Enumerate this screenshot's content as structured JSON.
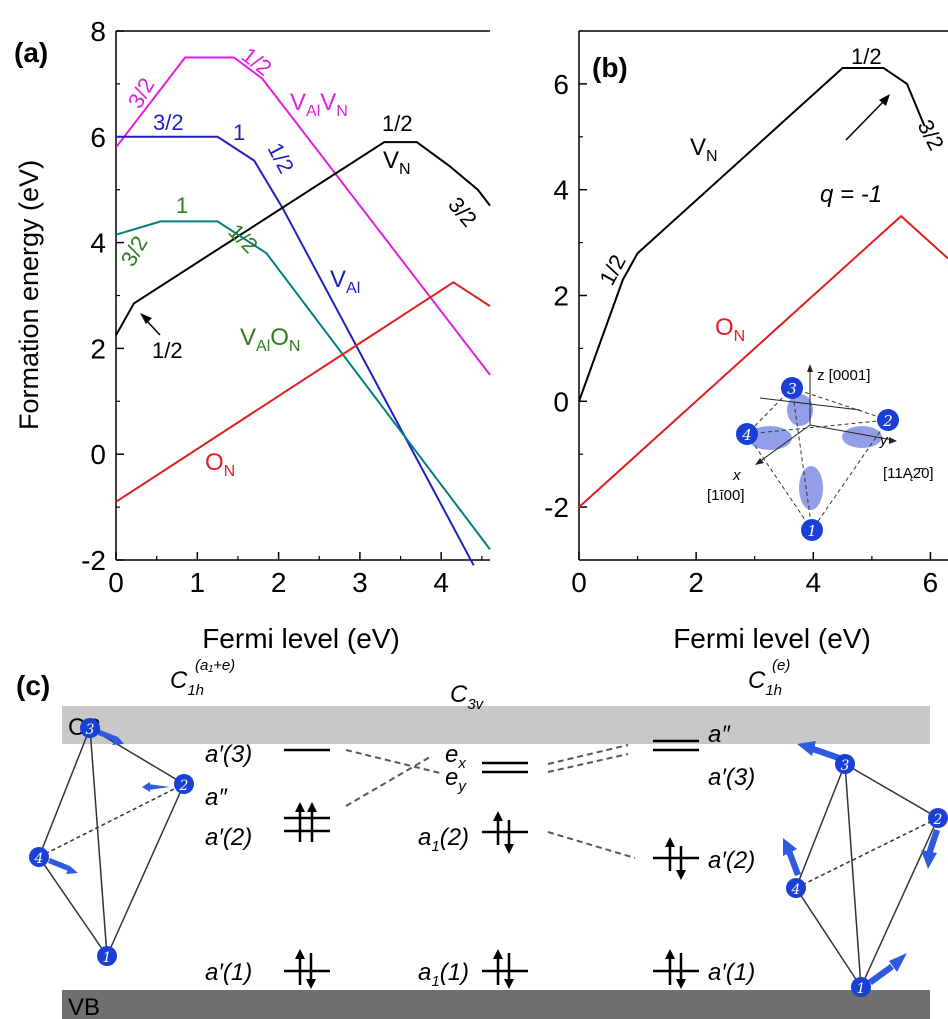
{
  "panels": [
    {
      "id": "a",
      "label": "(a)",
      "ylabel": "Formation energy (eV)",
      "xlabel": "Fermi level (eV)",
      "xlim": [
        0,
        4.6
      ],
      "ylim": [
        -2,
        8
      ],
      "xticks": [
        0,
        1,
        2,
        3,
        4
      ],
      "yticks": [
        -2,
        0,
        2,
        4,
        6,
        8
      ],
      "series": [
        {
          "name": "V_AlV_N",
          "color": "#e020e0",
          "points": [
            [
              0,
              5.8
            ],
            [
              0.85,
              7.5
            ],
            [
              1.45,
              7.5
            ],
            [
              1.8,
              7.1
            ],
            [
              4.6,
              1.5
            ]
          ],
          "labels": [
            {
              "text": "3/2"
            },
            {
              "text": "1/2"
            }
          ]
        },
        {
          "name": "V_Al",
          "color": "#2020c0",
          "points": [
            [
              0,
              6.0
            ],
            [
              1.25,
              6.0
            ],
            [
              1.7,
              5.55
            ],
            [
              2.05,
              4.65
            ],
            [
              4.4,
              -2.1
            ]
          ],
          "labels": [
            {
              "text": "3/2"
            },
            {
              "text": "1"
            },
            {
              "text": "1/2"
            }
          ]
        },
        {
          "name": "V_N",
          "color": "#000000",
          "points": [
            [
              0,
              2.25
            ],
            [
              0.22,
              2.85
            ],
            [
              3.3,
              5.9
            ],
            [
              3.7,
              5.9
            ],
            [
              4.1,
              5.45
            ],
            [
              4.45,
              5.0
            ],
            [
              4.6,
              4.7
            ]
          ],
          "labels": [
            {
              "text": "1/2"
            },
            {
              "text": "1/2"
            },
            {
              "text": "3/2"
            }
          ]
        },
        {
          "name": "V_AlO_N",
          "color": "#008080",
          "points": [
            [
              0,
              4.15
            ],
            [
              0.55,
              4.4
            ],
            [
              1.25,
              4.4
            ],
            [
              1.85,
              3.8
            ],
            [
              4.6,
              -1.8
            ]
          ],
          "labels": [
            {
              "text": "3/2"
            },
            {
              "text": "1"
            },
            {
              "text": "1/2"
            }
          ]
        },
        {
          "name": "O_N",
          "color": "#e02020",
          "points": [
            [
              0,
              -0.9
            ],
            [
              4.15,
              3.25
            ],
            [
              4.6,
              2.8
            ]
          ]
        }
      ]
    },
    {
      "id": "b",
      "label": "(b)",
      "xlabel": "Fermi level (eV)",
      "xlim": [
        0,
        6.3
      ],
      "ylim": [
        -3,
        7
      ],
      "xticks": [
        0,
        2,
        4,
        6
      ],
      "yticks": [
        -2,
        0,
        2,
        4,
        6
      ],
      "series": [
        {
          "name": "V_N",
          "color": "#000000",
          "points": [
            [
              0,
              0
            ],
            [
              0.75,
              2.3
            ],
            [
              1.0,
              2.8
            ],
            [
              4.5,
              6.3
            ],
            [
              5.2,
              6.3
            ],
            [
              5.6,
              6.0
            ],
            [
              5.9,
              5.2
            ]
          ],
          "labels": [
            {
              "text": "1/2"
            },
            {
              "text": "1/2"
            },
            {
              "text": "3/2"
            }
          ]
        },
        {
          "name": "O_N",
          "color": "#e02020",
          "points": [
            [
              0,
              -2
            ],
            [
              5.5,
              3.5
            ],
            [
              6.3,
              2.7
            ]
          ]
        }
      ],
      "annotation": {
        "text": "q = -1"
      },
      "inset": {
        "axes": {
          "z": "z [0001]",
          "y": "y",
          "y_dir": "[11Ą2̄0]",
          "x": "x",
          "x_dir": "[1ī00]"
        },
        "atoms": [
          "1",
          "2",
          "3",
          "4"
        ]
      }
    }
  ],
  "panel_c": {
    "label": "(c)",
    "cb_label": "CB",
    "vb_label": "VB",
    "headers": {
      "left_sym": "C",
      "left_sub": "1h",
      "left_sup": "(a₁+e)",
      "mid_sym": "C",
      "mid_sub": "3v",
      "right_sym": "C",
      "right_sub": "1h",
      "right_sup": "(e)"
    },
    "left_levels": {
      "a3": "a′(3)",
      "a2pp": "a″",
      "a2": "a′(2)",
      "a1": "a′(1)"
    },
    "mid_levels": {
      "ex": "e",
      "ex_sub": "x",
      "ey": "e",
      "ey_sub": "y",
      "a1_2": "a",
      "a1_2_sub": "1",
      "a1_2_num": "(2)",
      "a1_1": "a",
      "a1_1_sub": "1",
      "a1_1_num": "(1)"
    },
    "right_levels": {
      "a2pp": "a″",
      "a3": "a′(3)",
      "a2": "a′(2)",
      "a1": "a′(1)"
    },
    "atoms": [
      "1",
      "2",
      "3",
      "4"
    ],
    "colors": {
      "cb": "#c8c8c8",
      "vb": "#707070",
      "atom": "#1a3fd6"
    }
  }
}
